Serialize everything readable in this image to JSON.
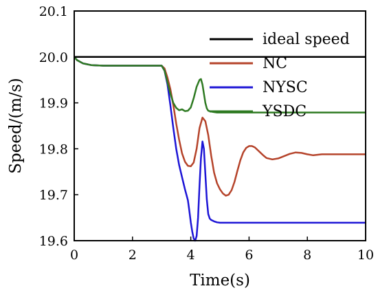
{
  "chart_data": {
    "type": "line",
    "xlabel": "Time(s)",
    "ylabel": "Speed/(m/s)",
    "xlim": [
      0,
      10
    ],
    "ylim": [
      19.6,
      20.1
    ],
    "x_ticks": [
      "0",
      "2",
      "4",
      "6",
      "8",
      "10"
    ],
    "y_ticks": [
      "19.6",
      "19.7",
      "19.8",
      "19.9",
      "20.0",
      "20.1"
    ],
    "grid": false,
    "legend_position": "top-right",
    "series": [
      {
        "name": "ideal speed",
        "color": "#000000",
        "x": [
          0,
          10
        ],
        "y": [
          20.0,
          20.0
        ]
      },
      {
        "name": "NC",
        "color": "#b5432a",
        "x": [
          0,
          0.1,
          0.3,
          0.6,
          1.0,
          2.0,
          3.0,
          3.1,
          3.2,
          3.3,
          3.4,
          3.5,
          3.6,
          3.7,
          3.8,
          3.9,
          4.0,
          4.1,
          4.2,
          4.3,
          4.4,
          4.5,
          4.6,
          4.7,
          4.8,
          4.9,
          5.0,
          5.1,
          5.2,
          5.3,
          5.4,
          5.5,
          5.6,
          5.7,
          5.8,
          5.9,
          6.0,
          6.1,
          6.2,
          6.3,
          6.4,
          6.5,
          6.6,
          6.8,
          7.0,
          7.2,
          7.4,
          7.6,
          7.8,
          8.0,
          8.2,
          8.5,
          9.0,
          9.5,
          10.0
        ],
        "y": [
          20.0,
          19.993,
          19.986,
          19.982,
          19.981,
          19.981,
          19.981,
          19.975,
          19.955,
          19.93,
          19.895,
          19.855,
          19.82,
          19.79,
          19.772,
          19.763,
          19.762,
          19.77,
          19.8,
          19.845,
          19.868,
          19.86,
          19.83,
          19.785,
          19.748,
          19.725,
          19.712,
          19.703,
          19.698,
          19.7,
          19.71,
          19.728,
          19.752,
          19.775,
          19.792,
          19.802,
          19.806,
          19.806,
          19.803,
          19.797,
          19.791,
          19.785,
          19.78,
          19.777,
          19.779,
          19.784,
          19.789,
          19.792,
          19.791,
          19.788,
          19.786,
          19.788,
          19.788,
          19.788,
          19.788
        ]
      },
      {
        "name": "NYSC",
        "color": "#1c14d6",
        "x": [
          0,
          0.1,
          0.3,
          0.6,
          1.0,
          2.0,
          3.0,
          3.1,
          3.2,
          3.3,
          3.4,
          3.5,
          3.6,
          3.7,
          3.8,
          3.9,
          3.95,
          4.0,
          4.05,
          4.1,
          4.15,
          4.2,
          4.25,
          4.3,
          4.35,
          4.4,
          4.45,
          4.5,
          4.55,
          4.6,
          4.65,
          4.7,
          4.8,
          4.9,
          5.0,
          5.5,
          6.0,
          7.0,
          8.0,
          9.0,
          10.0
        ],
        "y": [
          20.0,
          19.993,
          19.986,
          19.982,
          19.981,
          19.981,
          19.981,
          19.97,
          19.94,
          19.895,
          19.845,
          19.8,
          19.765,
          19.738,
          19.712,
          19.688,
          19.665,
          19.64,
          19.62,
          19.605,
          19.6,
          19.61,
          19.65,
          19.72,
          19.78,
          19.816,
          19.8,
          19.745,
          19.69,
          19.658,
          19.648,
          19.645,
          19.642,
          19.64,
          19.639,
          19.639,
          19.639,
          19.639,
          19.639,
          19.639,
          19.639
        ]
      },
      {
        "name": "YSDC",
        "color": "#2e7a22",
        "x": [
          0,
          0.1,
          0.3,
          0.6,
          1.0,
          2.0,
          3.0,
          3.1,
          3.2,
          3.3,
          3.4,
          3.5,
          3.6,
          3.7,
          3.8,
          3.9,
          4.0,
          4.1,
          4.2,
          4.3,
          4.35,
          4.4,
          4.45,
          4.5,
          4.55,
          4.6,
          4.7,
          4.8,
          4.9,
          5.0,
          5.5,
          6.0,
          7.0,
          8.0,
          9.0,
          10.0
        ],
        "y": [
          20.0,
          19.993,
          19.986,
          19.982,
          19.981,
          19.981,
          19.981,
          19.97,
          19.945,
          19.92,
          19.9,
          19.889,
          19.884,
          19.886,
          19.882,
          19.883,
          19.89,
          19.91,
          19.935,
          19.95,
          19.952,
          19.94,
          19.92,
          19.9,
          19.888,
          19.883,
          19.881,
          19.88,
          19.879,
          19.879,
          19.879,
          19.879,
          19.879,
          19.879,
          19.879,
          19.879
        ]
      }
    ]
  }
}
